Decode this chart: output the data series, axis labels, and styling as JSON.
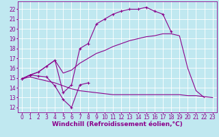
{
  "background_color": "#c0e8f0",
  "grid_color": "#ffffff",
  "line_color": "#8b008b",
  "xlabel": "Windchill (Refroidissement éolien,°C)",
  "xlabel_fontsize": 6.5,
  "tick_fontsize": 5.5,
  "xlim": [
    -0.5,
    23.5
  ],
  "ylim": [
    11.5,
    22.8
  ],
  "yticks": [
    12,
    13,
    14,
    15,
    16,
    17,
    18,
    19,
    20,
    21,
    22
  ],
  "xticks": [
    0,
    1,
    2,
    3,
    4,
    5,
    6,
    7,
    8,
    9,
    10,
    11,
    12,
    13,
    14,
    15,
    16,
    17,
    18,
    19,
    20,
    21,
    22,
    23
  ],
  "series": [
    {
      "x": [
        0,
        1,
        2,
        3,
        4,
        5,
        6,
        7,
        8
      ],
      "y": [
        14.9,
        15.3,
        15.2,
        15.1,
        14.2,
        12.8,
        12.0,
        14.3,
        14.5
      ],
      "marker": "+"
    },
    {
      "x": [
        0,
        1,
        2,
        3,
        4,
        5,
        6,
        7,
        8,
        9,
        10,
        11,
        12,
        13,
        14,
        15,
        16,
        17,
        18
      ],
      "y": [
        14.9,
        15.3,
        15.6,
        16.2,
        16.8,
        13.5,
        14.3,
        18.0,
        18.5,
        20.5,
        21.0,
        21.5,
        21.8,
        22.0,
        22.0,
        22.2,
        21.8,
        21.5,
        19.7
      ],
      "marker": "+"
    },
    {
      "x": [
        0,
        1,
        2,
        3,
        4,
        5,
        6,
        7,
        8,
        9,
        10,
        11,
        12,
        13,
        14,
        15,
        16,
        17,
        18,
        19,
        20,
        21,
        22
      ],
      "y": [
        14.9,
        15.3,
        15.6,
        16.2,
        16.8,
        15.5,
        15.8,
        16.5,
        17.0,
        17.5,
        17.8,
        18.2,
        18.5,
        18.8,
        19.0,
        19.2,
        19.3,
        19.5,
        19.5,
        19.3,
        16.0,
        13.7,
        13.0
      ],
      "marker": null
    },
    {
      "x": [
        0,
        1,
        2,
        3,
        4,
        5,
        6,
        7,
        8,
        9,
        10,
        11,
        12,
        13,
        14,
        15,
        16,
        17,
        18,
        19,
        20,
        21,
        22,
        23
      ],
      "y": [
        14.9,
        15.1,
        14.9,
        14.7,
        14.5,
        14.2,
        13.9,
        13.7,
        13.6,
        13.5,
        13.4,
        13.3,
        13.3,
        13.3,
        13.3,
        13.3,
        13.3,
        13.3,
        13.3,
        13.3,
        13.2,
        13.2,
        13.1,
        13.0
      ],
      "marker": null
    }
  ]
}
